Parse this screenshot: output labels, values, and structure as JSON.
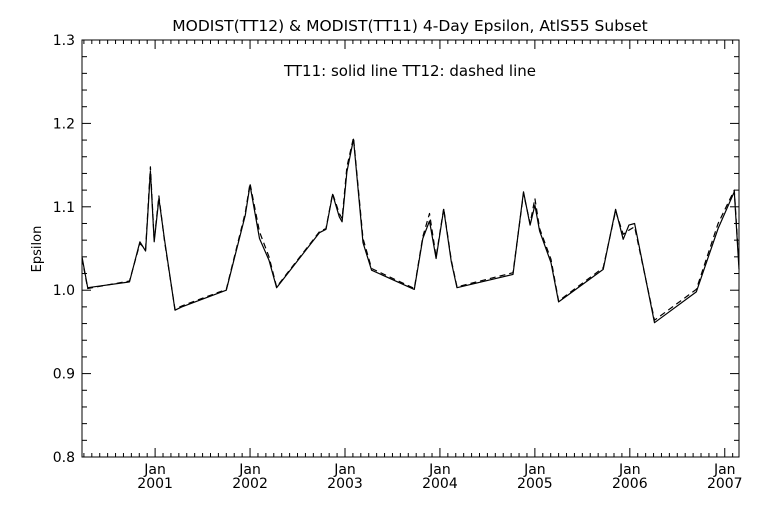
{
  "chart_data": {
    "type": "line",
    "title": "MODIST(TT12) & MODIST(TT11) 4-Day Epsilon, AtlS55 Subset",
    "annotation": "TT11: solid line   TT12: dashed line",
    "xlabel": "",
    "ylabel": "Epsilon",
    "ylim": [
      0.8,
      1.3
    ],
    "y_ticks": [
      "0.8",
      "0.9",
      "1.0",
      "1.1",
      "1.2",
      "1.3"
    ],
    "x_ticks": [
      {
        "month": "Jan",
        "year": "2001",
        "x": 2001.0
      },
      {
        "month": "Jan",
        "year": "2002",
        "x": 2002.0
      },
      {
        "month": "Jan",
        "year": "2003",
        "x": 2003.0
      },
      {
        "month": "Jan",
        "year": "2004",
        "x": 2004.0
      },
      {
        "month": "Jan",
        "year": "2005",
        "x": 2005.0
      },
      {
        "month": "Jan",
        "year": "2006",
        "x": 2006.0
      },
      {
        "month": "Jan",
        "year": "2007",
        "x": 2007.0
      }
    ],
    "xlim": [
      2000.23,
      2007.15
    ],
    "grid": false,
    "series": [
      {
        "name": "TT11",
        "style": "solid",
        "color": "#000000",
        "x": [
          2000.23,
          2000.29,
          2000.73,
          2000.84,
          2000.9,
          2000.95,
          2000.99,
          2001.04,
          2001.1,
          2001.21,
          2001.28,
          2001.75,
          2001.95,
          2002.0,
          2002.1,
          2002.2,
          2002.28,
          2002.73,
          2002.8,
          2002.87,
          2002.94,
          2002.97,
          2003.02,
          2003.09,
          2003.19,
          2003.28,
          2003.73,
          2003.82,
          2003.89,
          2003.96,
          2004.04,
          2004.12,
          2004.18,
          2004.77,
          2004.88,
          2004.95,
          2005.0,
          2005.05,
          2005.17,
          2005.25,
          2005.72,
          2005.85,
          2005.93,
          2005.99,
          2006.05,
          2006.26,
          2006.7,
          2006.93,
          2007.1,
          2007.15
        ],
        "y": [
          1.04,
          1.003,
          1.01,
          1.058,
          1.047,
          1.143,
          1.058,
          1.11,
          1.06,
          0.976,
          0.98,
          1.0,
          1.09,
          1.126,
          1.062,
          1.036,
          1.003,
          1.069,
          1.073,
          1.115,
          1.088,
          1.082,
          1.142,
          1.181,
          1.057,
          1.024,
          1.001,
          1.062,
          1.083,
          1.038,
          1.097,
          1.034,
          1.003,
          1.019,
          1.118,
          1.078,
          1.102,
          1.071,
          1.033,
          0.986,
          1.025,
          1.097,
          1.061,
          1.078,
          1.08,
          0.961,
          0.998,
          1.074,
          1.118,
          1.025
        ]
      },
      {
        "name": "TT12",
        "style": "dashed",
        "color": "#000000",
        "x": [
          2000.23,
          2000.29,
          2000.73,
          2000.84,
          2000.9,
          2000.95,
          2000.99,
          2001.04,
          2001.1,
          2001.21,
          2001.28,
          2001.75,
          2001.95,
          2002.0,
          2002.1,
          2002.2,
          2002.28,
          2002.73,
          2002.8,
          2002.87,
          2002.94,
          2002.97,
          2003.02,
          2003.09,
          2003.19,
          2003.28,
          2003.73,
          2003.82,
          2003.89,
          2003.96,
          2004.04,
          2004.12,
          2004.18,
          2004.77,
          2004.88,
          2004.95,
          2005.0,
          2005.05,
          2005.17,
          2005.25,
          2005.72,
          2005.85,
          2005.93,
          2005.99,
          2006.05,
          2006.26,
          2006.7,
          2006.93,
          2007.1,
          2007.15
        ],
        "y": [
          1.038,
          1.002,
          1.011,
          1.056,
          1.049,
          1.148,
          1.06,
          1.113,
          1.058,
          0.977,
          0.981,
          1.001,
          1.093,
          1.128,
          1.07,
          1.04,
          1.004,
          1.07,
          1.074,
          1.116,
          1.092,
          1.086,
          1.148,
          1.183,
          1.062,
          1.026,
          1.002,
          1.064,
          1.092,
          1.04,
          1.098,
          1.036,
          1.004,
          1.021,
          1.116,
          1.08,
          1.11,
          1.074,
          1.037,
          0.987,
          1.027,
          1.095,
          1.067,
          1.072,
          1.076,
          0.964,
          1.001,
          1.08,
          1.12,
          1.03
        ]
      }
    ]
  }
}
